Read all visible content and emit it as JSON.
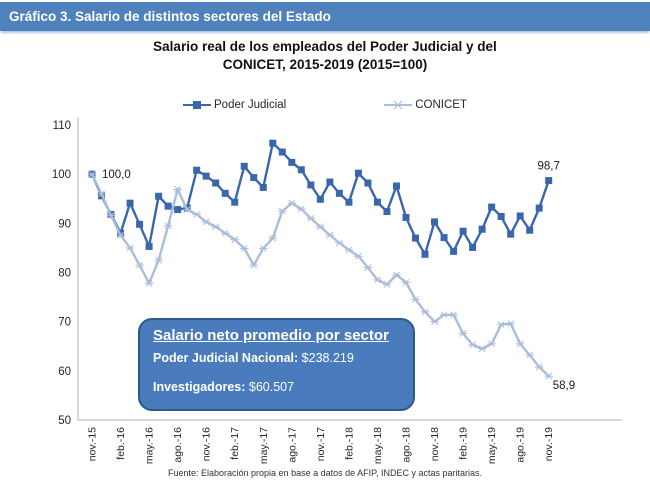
{
  "banner": {
    "text": "Gráfico 3. Salario de distintos sectores del Estado",
    "bg": "#4f81bd"
  },
  "title": {
    "line1": "Salario real de los empleados del Poder Judicial y del",
    "line2": "CONICET, 2015-2019 (2015=100)"
  },
  "legend": [
    {
      "label": "Poder Judicial",
      "marker": "square"
    },
    {
      "label": "CONICET",
      "marker": "asterisk"
    }
  ],
  "annotation_box": {
    "title": "Salario neto promedio por sector",
    "lines": [
      {
        "label": "Poder Judicial Nacional:",
        "value": " $238.219"
      },
      {
        "label": "Investigadores:",
        "value": " $60.507"
      }
    ],
    "bg": "#4a7cbd",
    "border": "#2d5988"
  },
  "footer": "Fuente: Elaboración propia en base a datos de AFIP, INDEC y actas paritarias.",
  "colors": {
    "poder_judicial": "#3a67ac",
    "conicet": "#a9bedb",
    "axis": "#bfbfbf",
    "tick_text": "#262626"
  },
  "chart_data": {
    "type": "line",
    "title": "Salario real de los empleados del Poder Judicial y del CONICET, 2015-2019 (2015=100)",
    "x_unit": "monthly, nov-2015 to nov-2019 (49 points)",
    "x_tick_labels": [
      "nov.-15",
      "feb.-16",
      "may.-16",
      "ago.-16",
      "nov.-16",
      "feb.-17",
      "may.-17",
      "ago.-17",
      "nov.-17",
      "feb.-18",
      "may.-18",
      "ago.-18",
      "nov.-18",
      "feb.-19",
      "may.-19",
      "ago.-19",
      "nov.-19"
    ],
    "x_tick_every_n_points": 3,
    "ylim": [
      50,
      110
    ],
    "yticks": [
      50,
      60,
      70,
      80,
      90,
      100,
      110
    ],
    "grid": false,
    "legend_position": "top",
    "series": [
      {
        "name": "Poder Judicial",
        "marker": "square",
        "values": [
          100.0,
          95.6,
          91.8,
          88.0,
          94.1,
          89.8,
          85.3,
          95.5,
          93.5,
          92.8,
          93.1,
          100.8,
          99.6,
          98.2,
          96.1,
          94.3,
          101.6,
          99.3,
          97.3,
          106.3,
          104.5,
          102.4,
          100.9,
          97.8,
          94.9,
          98.4,
          96.1,
          94.3,
          100.2,
          98.2,
          94.3,
          92.4,
          97.6,
          91.2,
          87.0,
          83.7,
          90.3,
          87.1,
          84.3,
          88.4,
          85.1,
          88.8,
          93.3,
          91.4,
          87.8,
          91.5,
          88.6,
          93.1,
          98.7
        ]
      },
      {
        "name": "CONICET",
        "marker": "asterisk",
        "values": [
          100.0,
          96.0,
          91.6,
          87.6,
          85.0,
          81.5,
          77.8,
          82.5,
          89.5,
          96.9,
          92.8,
          91.8,
          90.3,
          89.3,
          88.0,
          86.7,
          84.9,
          81.5,
          84.9,
          87.0,
          92.5,
          94.1,
          92.9,
          91.0,
          89.3,
          87.6,
          86.0,
          84.6,
          83.3,
          81.0,
          78.5,
          77.6,
          79.5,
          78.0,
          74.5,
          72.0,
          70.0,
          71.4,
          71.4,
          67.6,
          65.3,
          64.5,
          65.5,
          69.4,
          69.6,
          65.5,
          63.2,
          60.8,
          58.9
        ]
      }
    ],
    "point_labels": [
      {
        "series": 0,
        "index": 0,
        "text": "100,0",
        "placement": "right"
      },
      {
        "series": 0,
        "index": 48,
        "text": "98,7",
        "placement": "above"
      },
      {
        "series": 1,
        "index": 48,
        "text": "58,9",
        "placement": "below-right"
      }
    ]
  }
}
